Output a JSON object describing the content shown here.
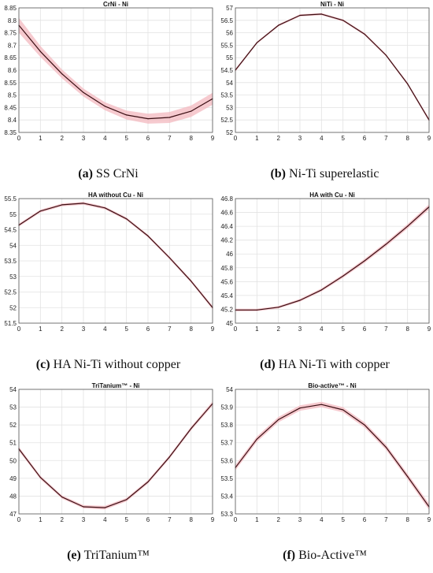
{
  "chart_data": [
    {
      "type": "line",
      "title": "CrNi - Ni",
      "caption_letter": "(a)",
      "caption_text": "SS CrNi",
      "x_ticks": [
        0,
        1,
        2,
        3,
        4,
        5,
        6,
        7,
        8,
        9
      ],
      "y_ticks": [
        8.35,
        8.4,
        8.45,
        8.5,
        8.55,
        8.6,
        8.65,
        8.7,
        8.75,
        8.8,
        8.85
      ],
      "xlim": [
        0,
        9
      ],
      "ylim": [
        8.35,
        8.85
      ],
      "series": [
        {
          "x": [
            0,
            1,
            2,
            3,
            4,
            5,
            6,
            7,
            8,
            9
          ],
          "y": [
            8.78,
            8.675,
            8.585,
            8.51,
            8.455,
            8.42,
            8.405,
            8.41,
            8.435,
            8.485
          ]
        }
      ],
      "band_halfwidth": [
        0.03,
        0.022,
        0.018,
        0.016,
        0.016,
        0.018,
        0.02,
        0.022,
        0.023,
        0.024
      ],
      "grid": true
    },
    {
      "type": "line",
      "title": "NiTi - Ni",
      "caption_letter": "(b)",
      "caption_text": "Ni-Ti superelastic",
      "x_ticks": [
        0,
        1,
        2,
        3,
        4,
        5,
        6,
        7,
        8,
        9
      ],
      "y_ticks": [
        52,
        52.5,
        53,
        53.5,
        54,
        54.5,
        55,
        55.5,
        56,
        56.5,
        57
      ],
      "xlim": [
        0,
        9
      ],
      "ylim": [
        52,
        57
      ],
      "series": [
        {
          "x": [
            0,
            1,
            2,
            3,
            4,
            5,
            6,
            7,
            8,
            9
          ],
          "y": [
            54.5,
            55.6,
            56.3,
            56.7,
            56.75,
            56.5,
            55.95,
            55.1,
            53.95,
            52.5
          ]
        }
      ],
      "band_halfwidth": [
        0.06,
        0.05,
        0.045,
        0.045,
        0.045,
        0.045,
        0.05,
        0.05,
        0.06,
        0.07
      ],
      "grid": true
    },
    {
      "type": "line",
      "title": "HA without Cu - Ni",
      "caption_letter": "(c)",
      "caption_text": "HA Ni-Ti without copper",
      "x_ticks": [
        0,
        1,
        2,
        3,
        4,
        5,
        6,
        7,
        8,
        9
      ],
      "y_ticks": [
        51.5,
        52,
        52.5,
        53,
        53.5,
        54,
        54.5,
        55,
        55.5
      ],
      "xlim": [
        0,
        9
      ],
      "ylim": [
        51.5,
        55.5
      ],
      "series": [
        {
          "x": [
            0,
            1,
            2,
            3,
            4,
            5,
            6,
            7,
            8,
            9
          ],
          "y": [
            54.65,
            55.1,
            55.3,
            55.35,
            55.2,
            54.85,
            54.3,
            53.6,
            52.85,
            52.0
          ]
        }
      ],
      "band_halfwidth": [
        0.05,
        0.045,
        0.045,
        0.045,
        0.045,
        0.045,
        0.045,
        0.05,
        0.05,
        0.06
      ],
      "grid": true
    },
    {
      "type": "line",
      "title": "HA with Cu - Ni",
      "caption_letter": "(d)",
      "caption_text": "HA Ni-Ti with copper",
      "x_ticks": [
        0,
        1,
        2,
        3,
        4,
        5,
        6,
        7,
        8,
        9
      ],
      "y_ticks": [
        45,
        45.2,
        45.4,
        45.6,
        45.8,
        46,
        46.2,
        46.4,
        46.6,
        46.8
      ],
      "xlim": [
        0,
        9
      ],
      "ylim": [
        45,
        46.8
      ],
      "series": [
        {
          "x": [
            0,
            1,
            2,
            3,
            4,
            5,
            6,
            7,
            8,
            9
          ],
          "y": [
            45.19,
            45.19,
            45.23,
            45.33,
            45.48,
            45.68,
            45.9,
            46.14,
            46.4,
            46.68
          ]
        }
      ],
      "band_halfwidth": [
        0.02,
        0.018,
        0.018,
        0.02,
        0.022,
        0.025,
        0.028,
        0.03,
        0.033,
        0.037
      ],
      "grid": true
    },
    {
      "type": "line",
      "title": "TriTanium™ - Ni",
      "caption_letter": "(e)",
      "caption_text": "TriTanium™",
      "x_ticks": [
        0,
        1,
        2,
        3,
        4,
        5,
        6,
        7,
        8,
        9
      ],
      "y_ticks": [
        47,
        48,
        49,
        50,
        51,
        52,
        53,
        54
      ],
      "xlim": [
        0,
        9
      ],
      "ylim": [
        47,
        54
      ],
      "series": [
        {
          "x": [
            0,
            1,
            2,
            3,
            4,
            5,
            6,
            7,
            8,
            9
          ],
          "y": [
            50.65,
            49.05,
            47.95,
            47.4,
            47.35,
            47.8,
            48.8,
            50.2,
            51.8,
            53.2
          ]
        }
      ],
      "band_halfwidth": [
        0.12,
        0.1,
        0.09,
        0.09,
        0.1,
        0.1,
        0.1,
        0.1,
        0.11,
        0.12
      ],
      "grid": true
    },
    {
      "type": "line",
      "title": "Bio-active™ - Ni",
      "caption_letter": "(f)",
      "caption_text": "Bio-Active™",
      "x_ticks": [
        0,
        1,
        2,
        3,
        4,
        5,
        6,
        7,
        8,
        9
      ],
      "y_ticks": [
        53.3,
        53.4,
        53.5,
        53.6,
        53.7,
        53.8,
        53.9,
        54
      ],
      "xlim": [
        0,
        9
      ],
      "ylim": [
        53.3,
        54
      ],
      "series": [
        {
          "x": [
            0,
            1,
            2,
            3,
            4,
            5,
            6,
            7,
            8,
            9
          ],
          "y": [
            53.56,
            53.72,
            53.83,
            53.895,
            53.915,
            53.885,
            53.8,
            53.675,
            53.51,
            53.34
          ]
        }
      ],
      "band_halfwidth": [
        0.015,
        0.015,
        0.015,
        0.015,
        0.015,
        0.015,
        0.015,
        0.015,
        0.016,
        0.018
      ],
      "grid": true
    }
  ],
  "colors": {
    "line": "#3a0d12",
    "band": "#f3b8bf",
    "grid": "#e2e2e2",
    "axis": "#555555"
  }
}
